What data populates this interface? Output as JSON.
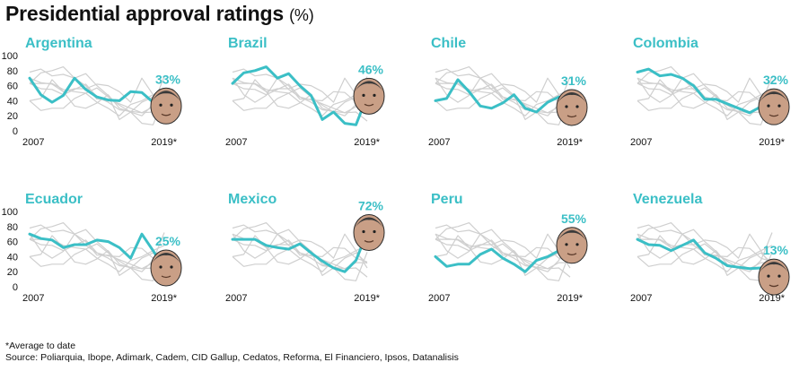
{
  "title": "Presidential approval ratings",
  "title_unit": "(%)",
  "footnote": "*Average to date",
  "source": "Source: Poliarquia, Ibope, Adimark, Cadem, CID Gallup, Cedatos, Reforma, El Financiero, Ipsos, Datanalisis",
  "colors": {
    "highlight": "#3bbfc6",
    "background_lines": "#cfcfcf",
    "text": "#111111",
    "label": "#3bbfc6"
  },
  "chart_data": [
    {
      "type": "line",
      "title": "Argentina",
      "x_labels": [
        "2007",
        "2019*"
      ],
      "ylim": [
        0,
        100
      ],
      "yticks": [
        0,
        20,
        40,
        60,
        80,
        100
      ],
      "series": [
        {
          "values": [
            70,
            48,
            38,
            47,
            70,
            55,
            45,
            41,
            40,
            52,
            51,
            38,
            33
          ]
        }
      ],
      "value_label": "33%",
      "portrait": "alberto-fernandez-face"
    },
    {
      "type": "line",
      "title": "Brazil",
      "x_labels": [
        "2007",
        "2019*"
      ],
      "ylim": [
        0,
        100
      ],
      "series": [
        {
          "values": [
            63,
            77,
            80,
            85,
            70,
            76,
            60,
            47,
            15,
            25,
            10,
            8,
            46
          ]
        }
      ],
      "value_label": "46%",
      "portrait": "jair-bolsonaro-face"
    },
    {
      "type": "line",
      "title": "Chile",
      "x_labels": [
        "2007",
        "2019*"
      ],
      "ylim": [
        0,
        100
      ],
      "series": [
        {
          "values": [
            40,
            43,
            68,
            52,
            33,
            30,
            37,
            48,
            30,
            25,
            38,
            45,
            31
          ]
        }
      ],
      "value_label": "31%",
      "portrait": "sebastian-pinera-face"
    },
    {
      "type": "line",
      "title": "Colombia",
      "x_labels": [
        "2007",
        "2019*"
      ],
      "ylim": [
        0,
        100
      ],
      "series": [
        {
          "values": [
            78,
            82,
            73,
            75,
            70,
            60,
            42,
            42,
            36,
            30,
            24,
            32,
            32
          ]
        }
      ],
      "value_label": "32%",
      "portrait": "ivan-duque-face"
    },
    {
      "type": "line",
      "title": "Ecuador",
      "x_labels": [
        "2007",
        "2019*"
      ],
      "ylim": [
        0,
        100
      ],
      "yticks": [
        0,
        20,
        40,
        60,
        80,
        100
      ],
      "series": [
        {
          "values": [
            70,
            64,
            62,
            52,
            56,
            56,
            62,
            60,
            52,
            38,
            70,
            48,
            25
          ]
        }
      ],
      "value_label": "25%",
      "portrait": "lenin-moreno-face"
    },
    {
      "type": "line",
      "title": "Mexico",
      "x_labels": [
        "2007",
        "2019*"
      ],
      "ylim": [
        0,
        100
      ],
      "series": [
        {
          "values": [
            63,
            63,
            63,
            55,
            52,
            50,
            57,
            45,
            34,
            25,
            20,
            35,
            72
          ]
        }
      ],
      "value_label": "72%",
      "portrait": "andres-manuel-lopez-obrador-face"
    },
    {
      "type": "line",
      "title": "Peru",
      "x_labels": [
        "2007",
        "2019*"
      ],
      "ylim": [
        0,
        100
      ],
      "series": [
        {
          "values": [
            40,
            27,
            30,
            30,
            43,
            50,
            38,
            30,
            20,
            35,
            40,
            48,
            55
          ]
        }
      ],
      "value_label": "55%",
      "portrait": "martin-vizcarra-face"
    },
    {
      "type": "line",
      "title": "Venezuela",
      "x_labels": [
        "2007",
        "2019*"
      ],
      "ylim": [
        0,
        100
      ],
      "series": [
        {
          "values": [
            63,
            56,
            55,
            48,
            55,
            62,
            45,
            38,
            28,
            26,
            24,
            25,
            13
          ]
        }
      ],
      "value_label": "13%",
      "portrait": "nicolas-maduro-face"
    }
  ]
}
